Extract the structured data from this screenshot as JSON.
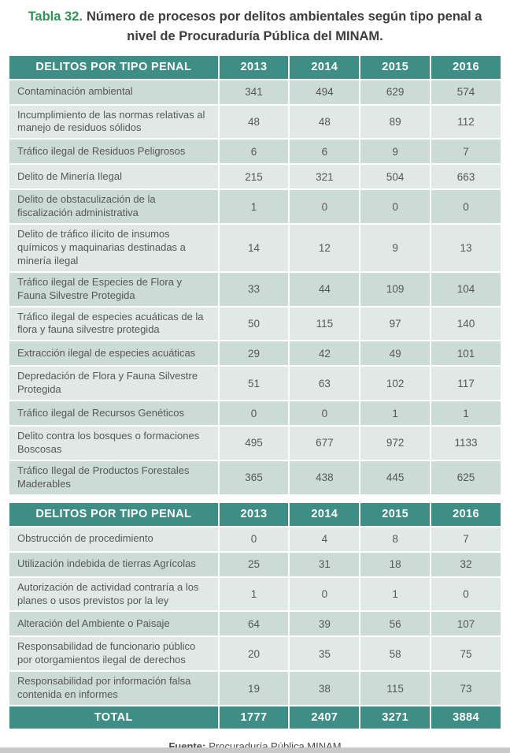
{
  "title": {
    "label": "Tabla 32.",
    "text": "Número de procesos por delitos ambientales según tipo penal a nivel de Procuraduría Pública del MINAM."
  },
  "colors": {
    "header_teal": "#3f8e86",
    "row_dark_sage": "#ccdbd5",
    "row_light_sage": "#e0e9e5",
    "title_green": "#2e9457",
    "body_text": "#575757",
    "bottom_bar_gray": "#c9c9c9"
  },
  "columns": [
    "DELITOS POR TIPO PENAL",
    "2013",
    "2014",
    "2015",
    "2016"
  ],
  "section1": {
    "rows": [
      {
        "label": "Contaminación ambiental",
        "values": [
          341,
          494,
          629,
          574
        ]
      },
      {
        "label": "Incumplimiento de las normas relativas al manejo de residuos sólidos",
        "values": [
          48,
          48,
          89,
          112
        ]
      },
      {
        "label": "Tráfico ilegal de Residuos Peligrosos",
        "values": [
          6,
          6,
          9,
          7
        ]
      },
      {
        "label": "Delito de Minería Ilegal",
        "values": [
          215,
          321,
          504,
          663
        ]
      },
      {
        "label": "Delito de obstaculización de la fiscalización administrativa",
        "values": [
          1,
          0,
          0,
          0
        ]
      },
      {
        "label": "Delito de tráfico ilícito de insumos químicos y maquinarias destinadas a minería ilegal",
        "values": [
          14,
          12,
          9,
          13
        ]
      },
      {
        "label": "Tráfico ilegal de Especies de Flora y Fauna Silvestre Protegida",
        "values": [
          33,
          44,
          109,
          104
        ]
      },
      {
        "label": "Tráfico ilegal de especies acuáticas de la flora y fauna silvestre protegida",
        "values": [
          50,
          115,
          97,
          140
        ]
      },
      {
        "label": "Extracción ilegal de especies acuáticas",
        "values": [
          29,
          42,
          49,
          101
        ]
      },
      {
        "label": "Depredación de Flora y Fauna Silvestre Protegida",
        "values": [
          51,
          63,
          102,
          117
        ]
      },
      {
        "label": "Tráfico ilegal de Recursos Genéticos",
        "values": [
          0,
          0,
          1,
          1
        ]
      },
      {
        "label": "Delito contra los bosques o formaciones Boscosas",
        "values": [
          495,
          677,
          972,
          1133
        ]
      },
      {
        "label": "Tráfico Ilegal de Productos Forestales Maderables",
        "values": [
          365,
          438,
          445,
          625
        ]
      }
    ]
  },
  "section2": {
    "rows": [
      {
        "label": "Obstrucción de procedimiento",
        "values": [
          0,
          4,
          8,
          7
        ]
      },
      {
        "label": "Utilización indebida de tierras Agrícolas",
        "values": [
          25,
          31,
          18,
          32
        ]
      },
      {
        "label": "Autorización de actividad contraría a los planes o usos previstos por la ley",
        "values": [
          1,
          0,
          1,
          0
        ]
      },
      {
        "label": "Alteración del Ambiente o Paisaje",
        "values": [
          64,
          39,
          56,
          107
        ]
      },
      {
        "label": "Responsabilidad de funcionario público por otorgamientos ilegal de derechos",
        "values": [
          20,
          35,
          58,
          75
        ]
      },
      {
        "label": "Responsabilidad por información falsa contenida en informes",
        "values": [
          19,
          38,
          115,
          73
        ]
      }
    ]
  },
  "total": {
    "label": "TOTAL",
    "values": [
      1777,
      2407,
      3271,
      3884
    ]
  },
  "source": {
    "label": "Fuente:",
    "text": "Procuraduría Pública MINAM"
  }
}
